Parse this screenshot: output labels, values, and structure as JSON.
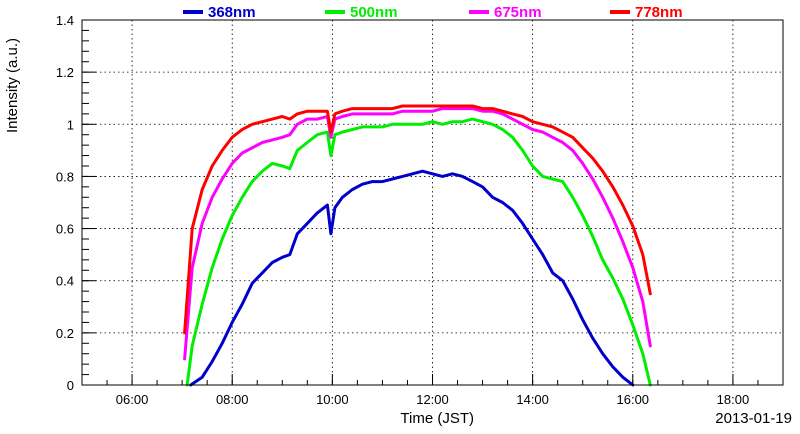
{
  "chart_data": {
    "type": "line",
    "title": "",
    "xlabel": "Time (JST)",
    "ylabel": "Intensity (a.u.)",
    "date_label": "2013-01-19",
    "xlim": [
      5.0,
      19.0
    ],
    "ylim": [
      0,
      1.4
    ],
    "x_ticks": [
      6,
      8,
      10,
      12,
      14,
      16,
      18
    ],
    "x_tick_labels": [
      "06:00",
      "08:00",
      "10:00",
      "12:00",
      "14:00",
      "16:00",
      "18:00"
    ],
    "y_ticks": [
      0,
      0.2,
      0.4,
      0.6,
      0.8,
      1.0,
      1.2,
      1.4
    ],
    "y_tick_labels": [
      "0",
      "0.2",
      "0.4",
      "0.6",
      "0.8",
      "1",
      "1.2",
      "1.4"
    ],
    "grid": true,
    "legend_position": "top",
    "series": [
      {
        "name": "368nm",
        "color": "#0000cc",
        "x": [
          7.17,
          7.4,
          7.6,
          7.8,
          8.0,
          8.2,
          8.4,
          8.6,
          8.8,
          9.0,
          9.15,
          9.3,
          9.5,
          9.7,
          9.9,
          9.97,
          10.05,
          10.2,
          10.4,
          10.6,
          10.8,
          11.0,
          11.2,
          11.4,
          11.6,
          11.8,
          12.0,
          12.2,
          12.4,
          12.6,
          12.8,
          13.0,
          13.2,
          13.4,
          13.6,
          13.8,
          14.0,
          14.2,
          14.4,
          14.6,
          14.8,
          15.0,
          15.2,
          15.4,
          15.6,
          15.8,
          16.0
        ],
        "y": [
          0.0,
          0.03,
          0.09,
          0.16,
          0.24,
          0.31,
          0.39,
          0.43,
          0.47,
          0.49,
          0.5,
          0.58,
          0.62,
          0.66,
          0.69,
          0.58,
          0.68,
          0.72,
          0.75,
          0.77,
          0.78,
          0.78,
          0.79,
          0.8,
          0.81,
          0.82,
          0.81,
          0.8,
          0.81,
          0.8,
          0.78,
          0.76,
          0.72,
          0.7,
          0.67,
          0.62,
          0.56,
          0.5,
          0.43,
          0.4,
          0.33,
          0.25,
          0.18,
          0.12,
          0.07,
          0.03,
          0.0
        ]
      },
      {
        "name": "500nm",
        "color": "#00ee00",
        "x": [
          7.1,
          7.2,
          7.4,
          7.6,
          7.8,
          8.0,
          8.2,
          8.4,
          8.6,
          8.8,
          9.0,
          9.15,
          9.3,
          9.5,
          9.7,
          9.9,
          9.97,
          10.05,
          10.2,
          10.4,
          10.6,
          10.8,
          11.0,
          11.2,
          11.4,
          11.6,
          11.8,
          12.0,
          12.2,
          12.4,
          12.6,
          12.8,
          13.0,
          13.2,
          13.4,
          13.6,
          13.8,
          14.0,
          14.2,
          14.4,
          14.6,
          14.8,
          15.0,
          15.2,
          15.4,
          15.6,
          15.8,
          16.0,
          16.2,
          16.35
        ],
        "y": [
          0.0,
          0.15,
          0.31,
          0.45,
          0.56,
          0.65,
          0.72,
          0.78,
          0.82,
          0.85,
          0.84,
          0.83,
          0.9,
          0.93,
          0.96,
          0.97,
          0.88,
          0.96,
          0.97,
          0.98,
          0.99,
          0.99,
          0.99,
          1.0,
          1.0,
          1.0,
          1.0,
          1.01,
          1.0,
          1.01,
          1.01,
          1.02,
          1.01,
          1.0,
          0.98,
          0.95,
          0.9,
          0.84,
          0.8,
          0.79,
          0.78,
          0.72,
          0.65,
          0.57,
          0.48,
          0.41,
          0.33,
          0.23,
          0.12,
          0.0
        ]
      },
      {
        "name": "675nm",
        "color": "#ff00ff",
        "x": [
          7.05,
          7.2,
          7.4,
          7.6,
          7.8,
          8.0,
          8.2,
          8.4,
          8.6,
          8.8,
          9.0,
          9.15,
          9.3,
          9.5,
          9.7,
          9.9,
          9.97,
          10.05,
          10.2,
          10.4,
          10.6,
          10.8,
          11.0,
          11.2,
          11.4,
          11.6,
          11.8,
          12.0,
          12.2,
          12.4,
          12.6,
          12.8,
          13.0,
          13.2,
          13.4,
          13.6,
          13.8,
          14.0,
          14.2,
          14.4,
          14.6,
          14.8,
          15.0,
          15.2,
          15.4,
          15.6,
          15.8,
          16.0,
          16.2,
          16.35
        ],
        "y": [
          0.1,
          0.45,
          0.62,
          0.72,
          0.79,
          0.85,
          0.89,
          0.91,
          0.93,
          0.94,
          0.95,
          0.96,
          1.0,
          1.02,
          1.02,
          1.03,
          0.95,
          1.02,
          1.03,
          1.04,
          1.04,
          1.04,
          1.04,
          1.04,
          1.05,
          1.05,
          1.05,
          1.05,
          1.06,
          1.06,
          1.06,
          1.06,
          1.05,
          1.05,
          1.04,
          1.02,
          1.0,
          0.98,
          0.97,
          0.95,
          0.93,
          0.9,
          0.85,
          0.79,
          0.72,
          0.64,
          0.55,
          0.45,
          0.32,
          0.15
        ]
      },
      {
        "name": "778nm",
        "color": "#ff0000",
        "x": [
          7.05,
          7.2,
          7.4,
          7.6,
          7.8,
          8.0,
          8.2,
          8.4,
          8.6,
          8.8,
          9.0,
          9.15,
          9.3,
          9.5,
          9.7,
          9.9,
          9.97,
          10.05,
          10.2,
          10.4,
          10.6,
          10.8,
          11.0,
          11.2,
          11.4,
          11.6,
          11.8,
          12.0,
          12.2,
          12.4,
          12.6,
          12.8,
          13.0,
          13.2,
          13.4,
          13.6,
          13.8,
          14.0,
          14.2,
          14.4,
          14.6,
          14.8,
          15.0,
          15.2,
          15.4,
          15.6,
          15.8,
          16.0,
          16.2,
          16.35
        ],
        "y": [
          0.2,
          0.6,
          0.75,
          0.84,
          0.9,
          0.95,
          0.98,
          1.0,
          1.01,
          1.02,
          1.03,
          1.02,
          1.04,
          1.05,
          1.05,
          1.05,
          0.97,
          1.04,
          1.05,
          1.06,
          1.06,
          1.06,
          1.06,
          1.06,
          1.07,
          1.07,
          1.07,
          1.07,
          1.07,
          1.07,
          1.07,
          1.07,
          1.06,
          1.06,
          1.05,
          1.04,
          1.03,
          1.01,
          1.0,
          0.99,
          0.97,
          0.95,
          0.91,
          0.87,
          0.82,
          0.76,
          0.69,
          0.61,
          0.5,
          0.35
        ]
      }
    ]
  }
}
